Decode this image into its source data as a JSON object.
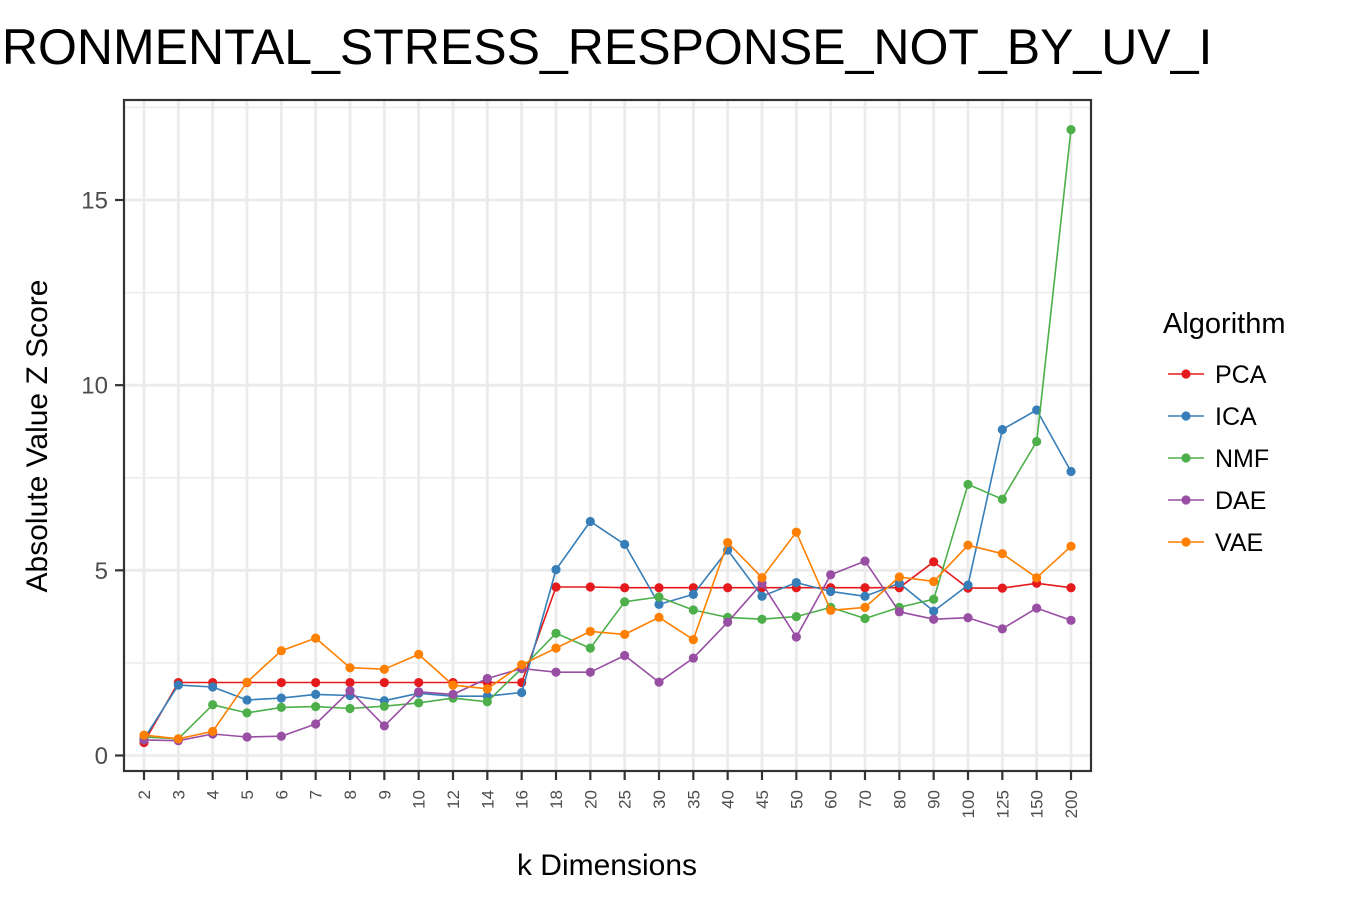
{
  "chart_data": {
    "type": "line",
    "title": "IRONMENTAL_STRESS_RESPONSE_NOT_BY_UV_I",
    "xlabel": "k Dimensions",
    "ylabel": "Absolute Value Z Score",
    "x_is_categorical": true,
    "categories": [
      "2",
      "3",
      "4",
      "5",
      "6",
      "7",
      "8",
      "9",
      "10",
      "12",
      "14",
      "16",
      "18",
      "20",
      "25",
      "30",
      "35",
      "40",
      "45",
      "50",
      "60",
      "70",
      "80",
      "90",
      "100",
      "125",
      "150",
      "200"
    ],
    "ylim": [
      -0.45,
      17.5
    ],
    "yticks": [
      0,
      5,
      10,
      15
    ],
    "grid": true,
    "legend": {
      "title": "Algorithm",
      "placement": "right"
    },
    "series": [
      {
        "name": "PCA",
        "color": "#e41a1c",
        "values": [
          0.35,
          1.97,
          1.97,
          1.97,
          1.97,
          1.97,
          1.97,
          1.97,
          1.97,
          1.97,
          1.97,
          1.97,
          4.55,
          4.55,
          4.53,
          4.53,
          4.53,
          4.53,
          4.53,
          4.53,
          4.53,
          4.53,
          4.53,
          5.23,
          4.52,
          4.52,
          4.65,
          4.53
        ]
      },
      {
        "name": "ICA",
        "color": "#377eb8",
        "values": [
          0.45,
          1.9,
          1.85,
          1.5,
          1.55,
          1.65,
          1.62,
          1.48,
          1.68,
          1.6,
          1.6,
          1.7,
          5.02,
          6.32,
          5.7,
          4.08,
          4.35,
          5.55,
          4.3,
          4.67,
          4.43,
          4.3,
          4.65,
          3.9,
          4.6,
          8.8,
          9.33,
          7.67
        ]
      },
      {
        "name": "NMF",
        "color": "#4daf4a",
        "values": [
          0.5,
          0.45,
          1.37,
          1.15,
          1.3,
          1.32,
          1.27,
          1.33,
          1.42,
          1.55,
          1.45,
          2.35,
          3.3,
          2.9,
          4.15,
          4.28,
          3.93,
          3.73,
          3.68,
          3.75,
          4.0,
          3.7,
          4.0,
          4.22,
          7.32,
          6.92,
          8.48,
          16.9
        ]
      },
      {
        "name": "DAE",
        "color": "#984ea3",
        "values": [
          0.42,
          0.4,
          0.58,
          0.5,
          0.52,
          0.85,
          1.75,
          0.8,
          1.72,
          1.65,
          2.08,
          2.35,
          2.25,
          2.25,
          2.7,
          1.98,
          2.63,
          3.6,
          4.65,
          3.2,
          4.88,
          5.25,
          3.88,
          3.68,
          3.72,
          3.42,
          3.98,
          3.65
        ]
      },
      {
        "name": "VAE",
        "color": "#ff7f00",
        "values": [
          0.55,
          0.45,
          0.65,
          1.98,
          2.83,
          3.17,
          2.37,
          2.33,
          2.73,
          1.9,
          1.8,
          2.45,
          2.9,
          3.35,
          3.27,
          3.73,
          3.13,
          5.75,
          4.8,
          6.03,
          3.92,
          4.0,
          4.82,
          4.7,
          5.68,
          5.45,
          4.8,
          5.65
        ]
      }
    ]
  }
}
